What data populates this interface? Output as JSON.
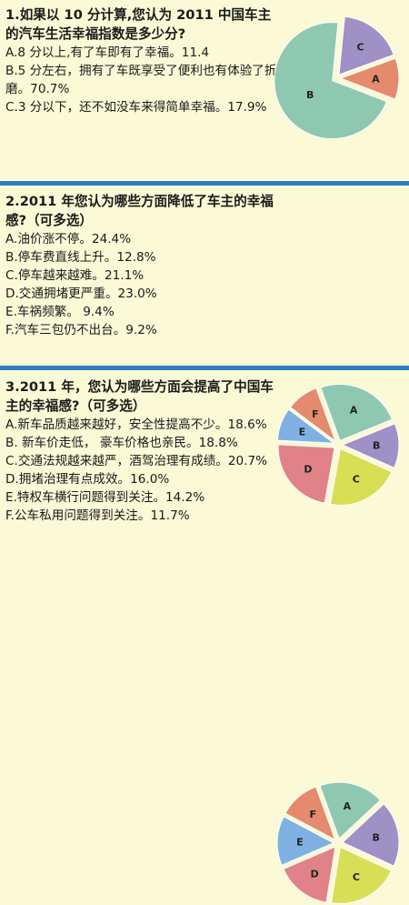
{
  "questions": [
    {
      "title": "1.如果以 10 分计算,您认为 2011 中国车主的汽车生活幸福指数是多少分?",
      "options": [
        "A.8 分以上,有了车即有了幸福。11.4",
        "B.5 分左右，拥有了车既享受了便利也有体验了折磨。70.7%",
        "C.3 分以下，还不如没车来得简单幸福。17.9%"
      ]
    },
    {
      "title": "2.2011 年您认为哪些方面降低了车主的幸福感?（可多选）",
      "options": [
        "A.油价涨不停。24.4%",
        "B.停车费直线上升。12.8%",
        "C.停车越来越难。21.1%",
        "D.交通拥堵更严重。23.0%",
        "E.车祸频繁。 9.4%",
        "F.汽车三包仍不出台。9.2%"
      ]
    },
    {
      "title": "3.2011 年，您认为哪些方面会提高了中国车主的幸福感?（可多选）",
      "options": [
        "A.新车品质越来越好，安全性提高不少。18.6%",
        "B. 新车价走低， 豪车价格也亲民。18.8%",
        "C.交通法规越来越严，酒驾治理有成绩。20.7%",
        "D.拥堵治理有点成效。16.0%",
        "E.特权车横行问题得到关注。14.2%",
        "F.公车私用问题得到关注。11.7%"
      ]
    }
  ],
  "chart_data": [
    {
      "type": "pie",
      "labels": [
        "A",
        "B",
        "C"
      ],
      "values": [
        11.4,
        70.7,
        17.9
      ],
      "colors": [
        "#e58a6c",
        "#8fc8b0",
        "#9f90c6"
      ],
      "explode": "A"
    },
    {
      "type": "pie",
      "labels": [
        "A",
        "B",
        "C",
        "D",
        "E",
        "F"
      ],
      "values": [
        24.4,
        12.8,
        21.1,
        23.0,
        9.4,
        9.2
      ],
      "colors": [
        "#8fc8b0",
        "#9f90c6",
        "#d8df55",
        "#e08287",
        "#7fb2e2",
        "#e58a6c"
      ]
    },
    {
      "type": "pie",
      "labels": [
        "A",
        "B",
        "C",
        "D",
        "E",
        "F"
      ],
      "values": [
        18.6,
        18.8,
        20.7,
        16.0,
        14.2,
        11.7
      ],
      "colors": [
        "#8fc8b0",
        "#9f90c6",
        "#d8df55",
        "#e08287",
        "#7fb2e2",
        "#e58a6c"
      ]
    }
  ]
}
